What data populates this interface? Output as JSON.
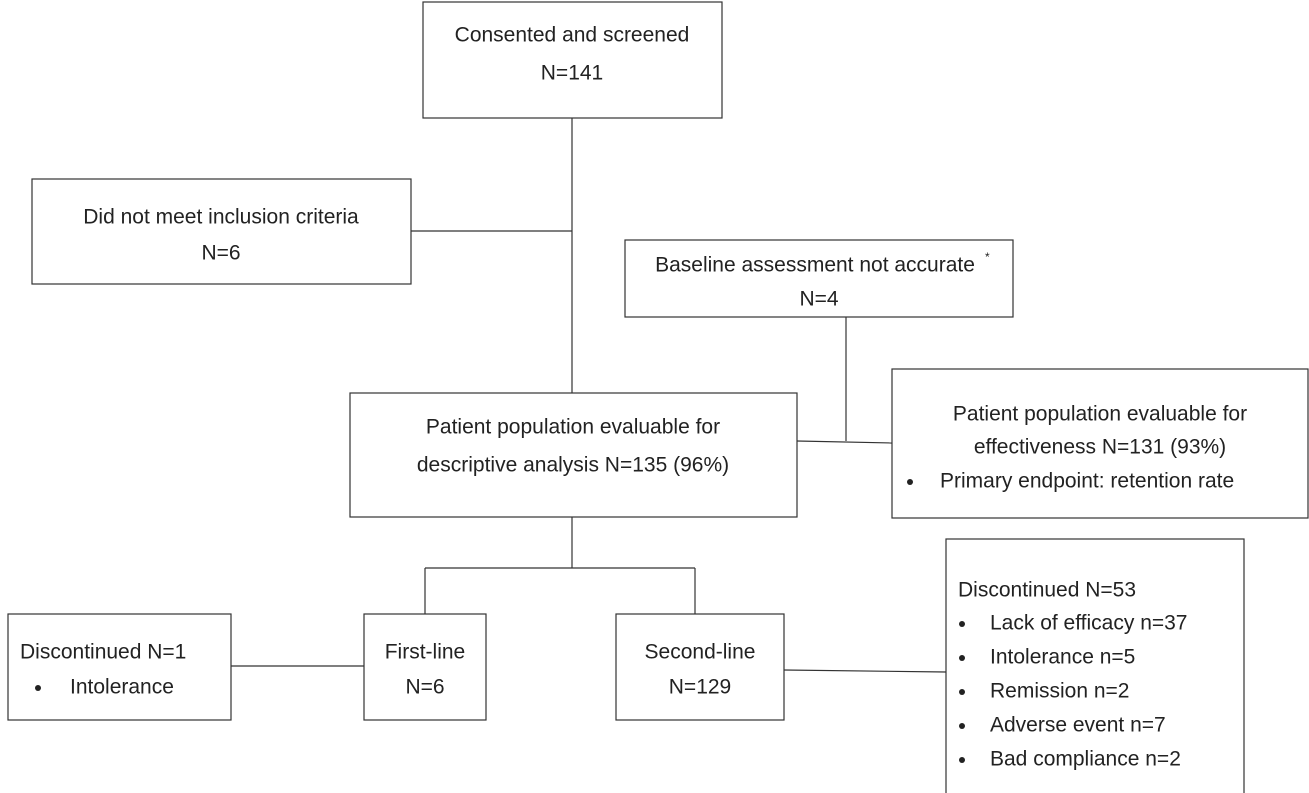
{
  "nodes": [
    {
      "lines": [
        "Consented and screened",
        "N=141"
      ]
    },
    {
      "lines": [
        "Did not meet inclusion criteria",
        "N=6"
      ]
    },
    {
      "lines": [
        "Baseline assessment not accurate",
        "N=4"
      ],
      "superscript": "*"
    },
    {
      "lines": [
        "Patient population evaluable for",
        "descriptive analysis N=135 (96%)"
      ]
    },
    {
      "lines": [
        "Patient population evaluable for",
        "effectiveness N=131 (93%)"
      ],
      "bullets": [
        "Primary endpoint: retention rate"
      ]
    },
    {
      "lines": [
        "Discontinued N=1"
      ],
      "bullets": [
        "Intolerance"
      ]
    },
    {
      "lines": [
        "First-line",
        "N=6"
      ]
    },
    {
      "lines": [
        "Second-line",
        "N=129"
      ]
    },
    {
      "lines": [
        "Discontinued N=53"
      ],
      "bullets": [
        "Lack of efficacy n=37",
        "Intolerance n=5",
        "Remission n=2",
        "Adverse event n=7",
        "Bad compliance n=2"
      ]
    }
  ]
}
